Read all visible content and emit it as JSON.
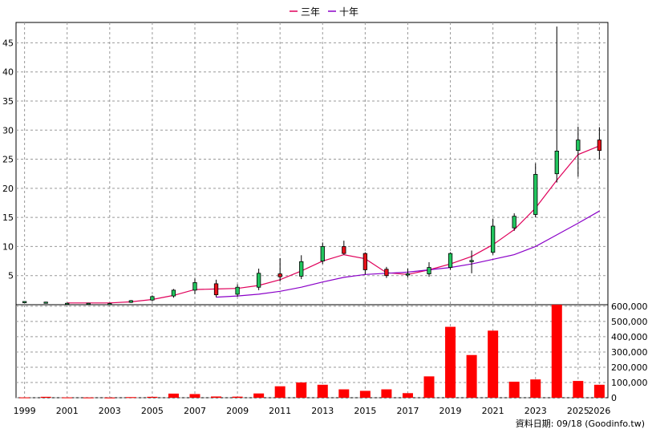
{
  "legend": {
    "series1": {
      "label": "三年",
      "color": "#e0005a"
    },
    "series2": {
      "label": "十年",
      "color": "#8a00c8"
    }
  },
  "footer_text": "資料日期: 09/18  (Goodinfo.tw)",
  "chart_data": [
    {
      "type": "candlestick",
      "yticks": [
        5,
        10,
        15,
        20,
        25,
        30,
        35,
        40,
        45
      ],
      "ylim": [
        0,
        48.5
      ],
      "grid": true,
      "up_color": "#22c55e",
      "down_color": "#e8111a",
      "candles": [
        {
          "year": 1999,
          "o": 0.55,
          "h": 0.6,
          "l": 0.5,
          "c": 0.55
        },
        {
          "year": 2000,
          "o": 0.45,
          "h": 0.5,
          "l": 0.4,
          "c": 0.45
        },
        {
          "year": 2001,
          "o": 0.25,
          "h": 0.3,
          "l": 0.2,
          "c": 0.25
        },
        {
          "year": 2002,
          "o": 0.25,
          "h": 0.3,
          "l": 0.2,
          "c": 0.25
        },
        {
          "year": 2003,
          "o": 0.2,
          "h": 0.3,
          "l": 0.15,
          "c": 0.2
        },
        {
          "year": 2004,
          "o": 0.4,
          "h": 0.8,
          "l": 0.3,
          "c": 0.7
        },
        {
          "year": 2005,
          "o": 0.8,
          "h": 1.6,
          "l": 0.6,
          "c": 1.4
        },
        {
          "year": 2006,
          "o": 1.5,
          "h": 2.7,
          "l": 1.2,
          "c": 2.5
        },
        {
          "year": 2007,
          "o": 2.5,
          "h": 4.5,
          "l": 1.8,
          "c": 3.8
        },
        {
          "year": 2008,
          "o": 3.6,
          "h": 4.3,
          "l": 1.3,
          "c": 1.7
        },
        {
          "year": 2009,
          "o": 1.8,
          "h": 3.5,
          "l": 1.4,
          "c": 3.0
        },
        {
          "year": 2010,
          "o": 3.0,
          "h": 6.2,
          "l": 2.5,
          "c": 5.4
        },
        {
          "year": 2011,
          "o": 5.3,
          "h": 8.0,
          "l": 4.0,
          "c": 4.8
        },
        {
          "year": 2012,
          "o": 4.9,
          "h": 8.5,
          "l": 4.4,
          "c": 7.4
        },
        {
          "year": 2013,
          "o": 7.5,
          "h": 10.7,
          "l": 7.0,
          "c": 10.0
        },
        {
          "year": 2014,
          "o": 10.0,
          "h": 11.0,
          "l": 8.6,
          "c": 8.8
        },
        {
          "year": 2015,
          "o": 8.8,
          "h": 9.0,
          "l": 5.2,
          "c": 6.0
        },
        {
          "year": 2016,
          "o": 6.1,
          "h": 6.5,
          "l": 4.6,
          "c": 5.0
        },
        {
          "year": 2017,
          "o": 5.1,
          "h": 6.2,
          "l": 4.7,
          "c": 5.3
        },
        {
          "year": 2018,
          "o": 5.3,
          "h": 7.3,
          "l": 4.8,
          "c": 6.4
        },
        {
          "year": 2019,
          "o": 6.4,
          "h": 9.0,
          "l": 6.0,
          "c": 8.8
        },
        {
          "year": 2020,
          "o": 7.5,
          "h": 9.3,
          "l": 5.4,
          "c": 7.6
        },
        {
          "year": 2021,
          "o": 9.0,
          "h": 14.8,
          "l": 8.6,
          "c": 13.5
        },
        {
          "year": 2022,
          "o": 13.2,
          "h": 15.7,
          "l": 12.7,
          "c": 15.2
        },
        {
          "year": 2023,
          "o": 15.5,
          "h": 24.3,
          "l": 15.0,
          "c": 22.4
        },
        {
          "year": 2024,
          "o": 22.5,
          "h": 47.8,
          "l": 21.0,
          "c": 26.4
        },
        {
          "year": 2025,
          "o": 26.5,
          "h": 30.6,
          "l": 22.0,
          "c": 28.3
        },
        {
          "year": 2026,
          "o": 28.3,
          "h": 30.5,
          "l": 25.0,
          "c": 26.5
        }
      ],
      "lines": [
        {
          "name": "三年",
          "color": "#e0005a",
          "years": [
            2001,
            2002,
            2003,
            2004,
            2005,
            2006,
            2007,
            2008,
            2009,
            2010,
            2011,
            2012,
            2013,
            2014,
            2015,
            2016,
            2017,
            2018,
            2019,
            2020,
            2021,
            2022,
            2023,
            2024,
            2025,
            2026
          ],
          "values": [
            0.3,
            0.3,
            0.3,
            0.5,
            0.9,
            1.6,
            2.6,
            2.7,
            2.8,
            3.3,
            4.3,
            5.8,
            7.5,
            8.6,
            7.9,
            5.5,
            5.2,
            6.0,
            7.0,
            8.3,
            10.3,
            12.9,
            16.6,
            21.4,
            25.8,
            27.3
          ]
        },
        {
          "name": "十年",
          "color": "#8a00c8",
          "years": [
            2008,
            2009,
            2010,
            2011,
            2012,
            2013,
            2014,
            2015,
            2016,
            2017,
            2018,
            2019,
            2020,
            2021,
            2022,
            2023,
            2024,
            2025,
            2026
          ],
          "values": [
            1.3,
            1.5,
            1.8,
            2.3,
            3.0,
            3.9,
            4.7,
            5.2,
            5.4,
            5.6,
            6.0,
            6.4,
            7.0,
            7.8,
            8.6,
            10.0,
            12.0,
            14.0,
            16.1
          ]
        }
      ]
    },
    {
      "type": "bar",
      "color": "#ff0000",
      "yticks": [
        0,
        100000,
        200000,
        300000,
        400000,
        500000,
        600000
      ],
      "ytick_labels": [
        "0",
        "100,000",
        "200,000",
        "300,000",
        "400,000",
        "500,000",
        "600,000"
      ],
      "ylim": [
        0,
        610000
      ],
      "grid": true,
      "categories": [
        1999,
        2000,
        2001,
        2002,
        2003,
        2004,
        2005,
        2006,
        2007,
        2008,
        2009,
        2010,
        2011,
        2012,
        2013,
        2014,
        2015,
        2016,
        2017,
        2018,
        2019,
        2020,
        2021,
        2022,
        2023,
        2024,
        2025,
        2026
      ],
      "values": [
        2000,
        6000,
        2000,
        1500,
        1000,
        4000,
        6000,
        27000,
        24000,
        8000,
        7000,
        28000,
        75000,
        100000,
        85000,
        55000,
        45000,
        55000,
        30000,
        140000,
        465000,
        280000,
        440000,
        105000,
        120000,
        610000,
        110000,
        85000
      ]
    }
  ],
  "xaxis": {
    "min": 1998.6,
    "max": 2026.4,
    "tick_years": [
      1999,
      2001,
      2003,
      2005,
      2007,
      2009,
      2011,
      2013,
      2015,
      2017,
      2019,
      2021,
      2023,
      2025,
      2026
    ],
    "tick_labels": [
      "1999",
      "2001",
      "2003",
      "2005",
      "2007",
      "2009",
      "2011",
      "2013",
      "2015",
      "2017",
      "2019",
      "2021",
      "2023",
      "2025",
      "2026"
    ]
  }
}
